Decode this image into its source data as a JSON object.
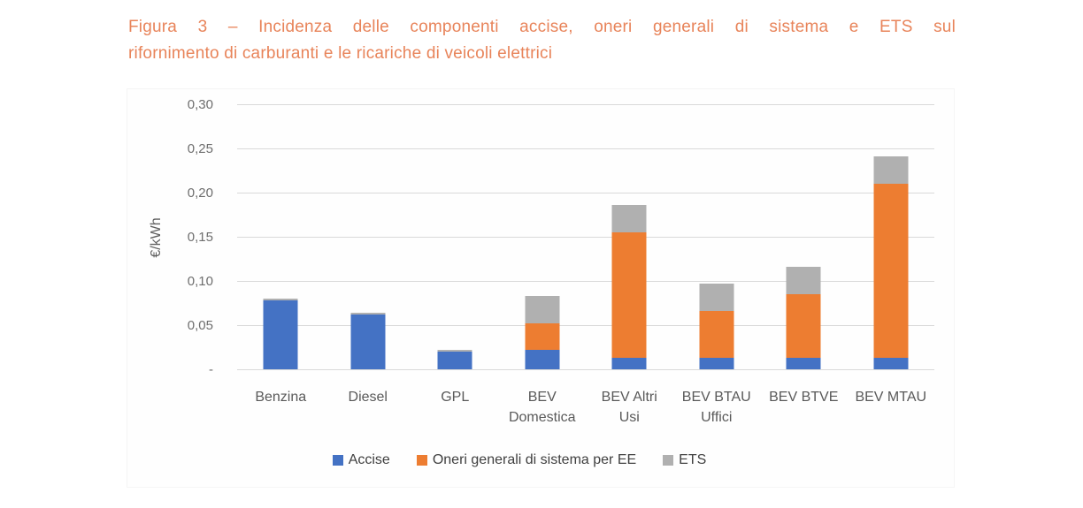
{
  "title": {
    "line1": "Figura 3 – Incidenza delle componenti accise, oneri generali di sistema e ETS sul",
    "line2": "rifornimento di carburanti e le ricariche di veicoli elettrici"
  },
  "colors": {
    "title_text": "#e8845a",
    "accise_blue": "#4472c4",
    "oneri_orange": "#ed7d31",
    "ets_gray": "#b0b0b0",
    "gridline": "#d9d9d9",
    "axis_text": "#6e6e6e",
    "category_text": "#595959",
    "legend_text": "#404040"
  },
  "chart_data": {
    "type": "bar",
    "stacked": true,
    "title": "Figura 3 – Incidenza delle componenti accise, oneri generali di sistema e ETS sul rifornimento di carburanti e le ricariche di veicoli elettrici",
    "ylabel": "€/kWh",
    "xlabel": "",
    "ylim": [
      0,
      0.3
    ],
    "ytick_step": 0.05,
    "ytick_labels": [
      "-",
      "0,05",
      "0,10",
      "0,15",
      "0,20",
      "0,25",
      "0,30"
    ],
    "grid": true,
    "legend_position": "bottom",
    "categories": [
      "Benzina",
      "Diesel",
      "GPL",
      "BEV Domestica",
      "BEV Altri Usi",
      "BEV BTAU Uffici",
      "BEV BTVE",
      "BEV MTAU"
    ],
    "category_label_lines": [
      [
        "Benzina"
      ],
      [
        "Diesel"
      ],
      [
        "GPL"
      ],
      [
        "BEV",
        "Domestica"
      ],
      [
        "BEV Altri",
        "Usi"
      ],
      [
        "BEV BTAU",
        "Uffici"
      ],
      [
        "BEV BTVE"
      ],
      [
        "BEV MTAU"
      ]
    ],
    "series": [
      {
        "name": "Accise",
        "color": "#4472c4",
        "values": [
          0.078,
          0.062,
          0.02,
          0.022,
          0.013,
          0.013,
          0.013,
          0.013
        ]
      },
      {
        "name": "Oneri generali di sistema per EE",
        "color": "#ed7d31",
        "values": [
          0,
          0,
          0,
          0.03,
          0.142,
          0.053,
          0.072,
          0.197
        ]
      },
      {
        "name": "ETS",
        "color": "#b0b0b0",
        "values": [
          0.002,
          0.002,
          0.002,
          0.031,
          0.031,
          0.031,
          0.031,
          0.031
        ]
      }
    ],
    "stacked_totals": [
      0.08,
      0.064,
      0.022,
      0.083,
      0.186,
      0.097,
      0.116,
      0.241
    ]
  }
}
